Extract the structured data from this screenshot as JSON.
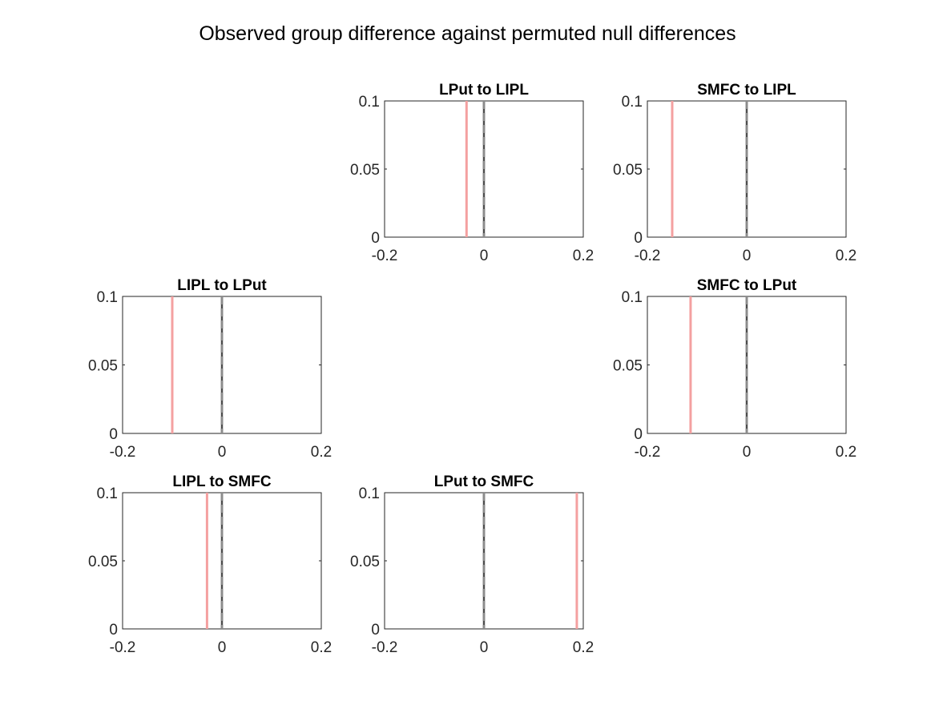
{
  "figure": {
    "title": "Observed group difference against permuted null differences"
  },
  "colors": {
    "observed": "#f4a0a0",
    "null": "#4d4d4d",
    "null_dash": "#8c8c8c",
    "axis": "#262626"
  },
  "chart_data": [
    {
      "type": "line",
      "title": "LPut to LIPL",
      "xlim": [
        -0.2,
        0.2
      ],
      "ylim": [
        0,
        0.1
      ],
      "xticks": [
        "-0.2",
        "0",
        "0.2"
      ],
      "yticks": [
        "0",
        "0.05",
        "0.1"
      ],
      "observed_difference": -0.035,
      "null_center": 0.0,
      "null_spread": 0.002
    },
    {
      "type": "line",
      "title": "SMFC to LIPL",
      "xlim": [
        -0.2,
        0.2
      ],
      "ylim": [
        0,
        0.1
      ],
      "xticks": [
        "-0.2",
        "0",
        "0.2"
      ],
      "yticks": [
        "0",
        "0.05",
        "0.1"
      ],
      "observed_difference": -0.15,
      "null_center": 0.0,
      "null_spread": 0.002
    },
    {
      "type": "line",
      "title": "LIPL to LPut",
      "xlim": [
        -0.2,
        0.2
      ],
      "ylim": [
        0,
        0.1
      ],
      "xticks": [
        "-0.2",
        "0",
        "0.2"
      ],
      "yticks": [
        "0",
        "0.05",
        "0.1"
      ],
      "observed_difference": -0.1,
      "null_center": 0.0,
      "null_spread": 0.002
    },
    {
      "type": "line",
      "title": "SMFC to LPut",
      "xlim": [
        -0.2,
        0.2
      ],
      "ylim": [
        0,
        0.1
      ],
      "xticks": [
        "-0.2",
        "0",
        "0.2"
      ],
      "yticks": [
        "0",
        "0.05",
        "0.1"
      ],
      "observed_difference": -0.113,
      "null_center": 0.0,
      "null_spread": 0.002
    },
    {
      "type": "line",
      "title": "LIPL to SMFC",
      "xlim": [
        -0.2,
        0.2
      ],
      "ylim": [
        0,
        0.1
      ],
      "xticks": [
        "-0.2",
        "0",
        "0.2"
      ],
      "yticks": [
        "0",
        "0.05",
        "0.1"
      ],
      "observed_difference": -0.03,
      "null_center": 0.0,
      "null_spread": 0.002
    },
    {
      "type": "line",
      "title": "LPut to SMFC",
      "xlim": [
        -0.2,
        0.2
      ],
      "ylim": [
        0,
        0.1
      ],
      "xticks": [
        "-0.2",
        "0",
        "0.2"
      ],
      "yticks": [
        "0",
        "0.05",
        "0.1"
      ],
      "observed_difference": 0.187,
      "null_center": 0.0,
      "null_spread": 0.002
    }
  ]
}
